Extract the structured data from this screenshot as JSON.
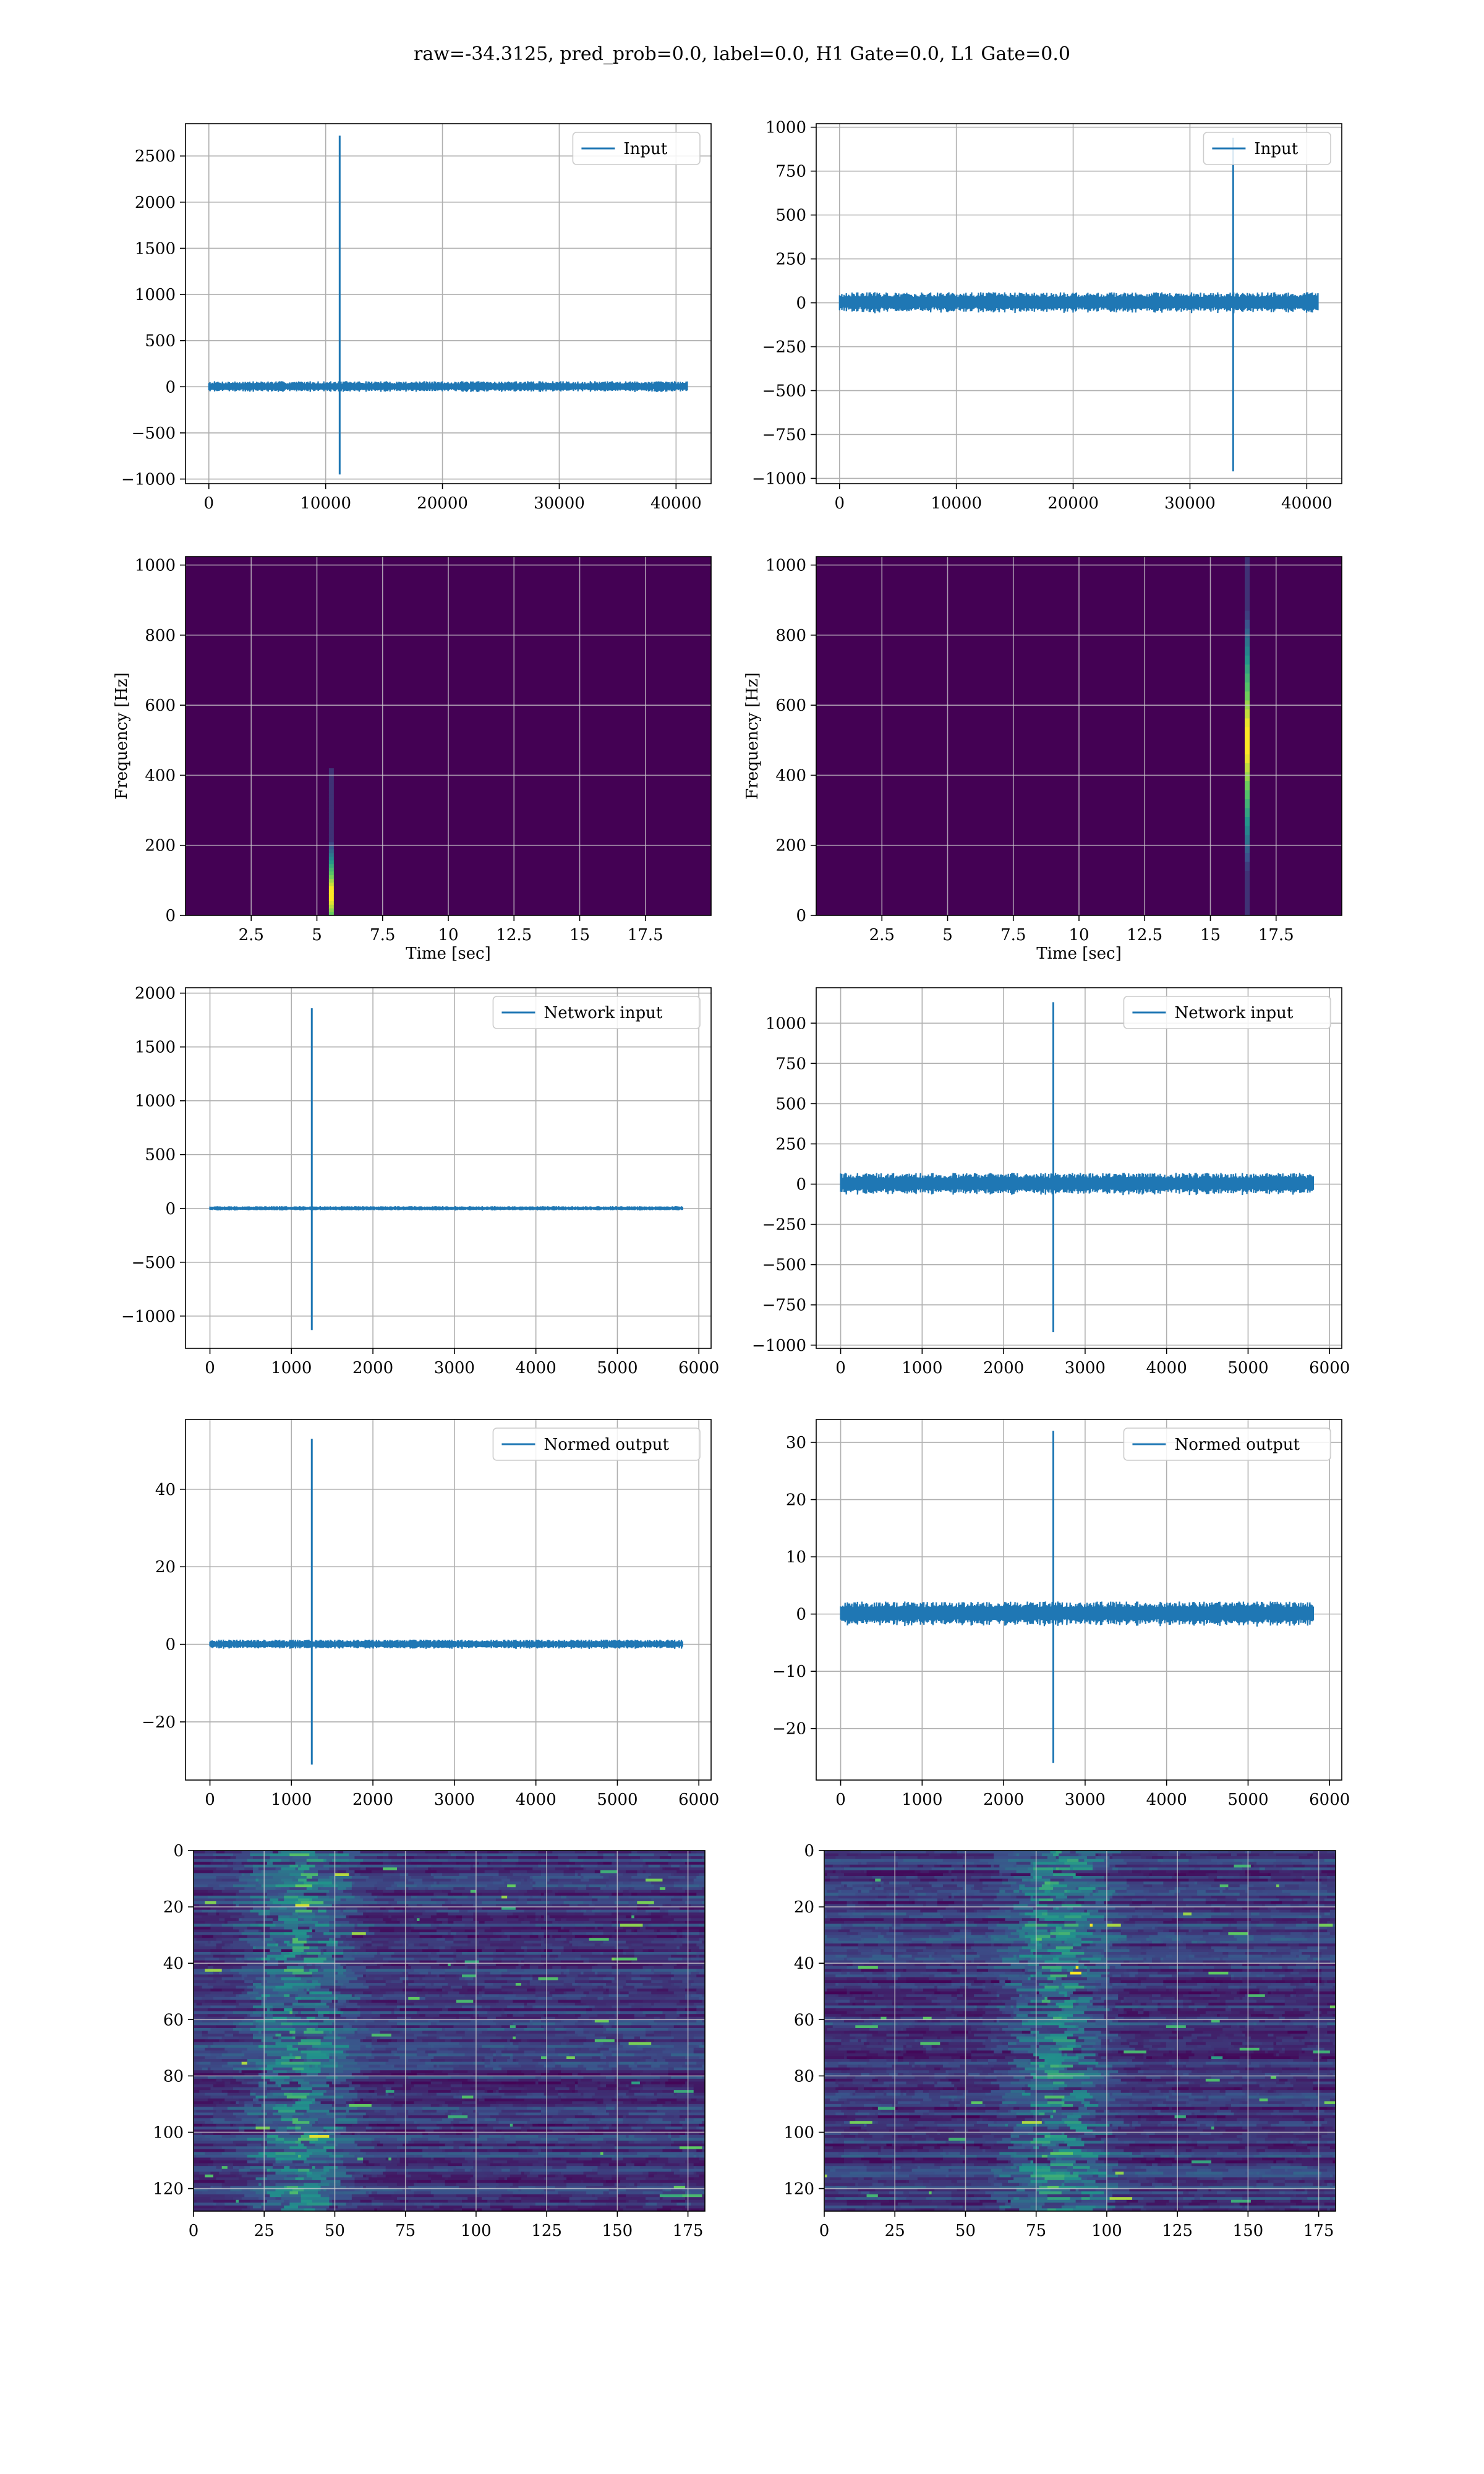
{
  "figure_title": "raw=-34.3125, pred_prob=0.0, label=0.0, H1 Gate=0.0, L1 Gate=0.0",
  "colors": {
    "series": "#1f77b4",
    "heatmap_bg": "#440154",
    "grid": "#b0b0b0"
  },
  "chart_data": [
    {
      "id": "input-h1",
      "type": "line",
      "legend": "Input",
      "legend_loc": "upper right",
      "xlim": [
        -2000,
        43000
      ],
      "ylim": [
        -1050,
        2850
      ],
      "xticks": [
        0,
        10000,
        20000,
        30000,
        40000
      ],
      "yticks": [
        -1000,
        -500,
        0,
        500,
        1000,
        1500,
        2000,
        2500
      ],
      "x_range": [
        0,
        40960
      ],
      "noise_amplitude": 60,
      "spikes": [
        {
          "x": 11200,
          "min": -950,
          "max": 2720
        }
      ],
      "grid": true
    },
    {
      "id": "input-l1",
      "type": "line",
      "legend": "Input",
      "legend_loc": "upper right",
      "xlim": [
        -2000,
        43000
      ],
      "ylim": [
        -1030,
        1020
      ],
      "xticks": [
        0,
        10000,
        20000,
        30000,
        40000
      ],
      "yticks": [
        -1000,
        -750,
        -500,
        -250,
        0,
        250,
        500,
        750,
        1000
      ],
      "x_range": [
        0,
        40960
      ],
      "noise_amplitude": 60,
      "spikes": [
        {
          "x": 33700,
          "min": -960,
          "max": 940
        }
      ],
      "grid": true
    },
    {
      "id": "spec-h1",
      "type": "heatmap",
      "xlabel": "Time [sec]",
      "ylabel": "Frequency [Hz]",
      "xlim": [
        0,
        20
      ],
      "ylim": [
        0,
        1024
      ],
      "xticks": [
        2.5,
        5.0,
        7.5,
        10.0,
        12.5,
        15.0,
        17.5
      ],
      "yticks": [
        0,
        200,
        400,
        600,
        800,
        1000
      ],
      "hotspots": [
        {
          "t": 5.55,
          "f_min": 0,
          "f_max": 420,
          "peak_f": 60
        }
      ],
      "grid": true
    },
    {
      "id": "spec-l1",
      "type": "heatmap",
      "xlabel": "Time [sec]",
      "ylabel": "Frequency [Hz]",
      "xlim": [
        0,
        20
      ],
      "ylim": [
        0,
        1024
      ],
      "xticks": [
        2.5,
        5.0,
        7.5,
        10.0,
        12.5,
        15.0,
        17.5
      ],
      "yticks": [
        0,
        200,
        400,
        600,
        800,
        1000
      ],
      "hotspots": [
        {
          "t": 16.4,
          "f_min": 0,
          "f_max": 1024,
          "peak_f": 500
        }
      ],
      "grid": true
    },
    {
      "id": "net-h1",
      "type": "line",
      "legend": "Network input",
      "legend_loc": "upper right",
      "xlim": [
        -300,
        6150
      ],
      "ylim": [
        -1300,
        2050
      ],
      "xticks": [
        0,
        1000,
        2000,
        3000,
        4000,
        5000,
        6000
      ],
      "yticks": [
        -1000,
        -500,
        0,
        500,
        1000,
        1500,
        2000
      ],
      "x_range": [
        0,
        5800
      ],
      "noise_amplitude": 20,
      "spikes": [
        {
          "x": 1250,
          "min": -1130,
          "max": 1860
        }
      ],
      "grid": true
    },
    {
      "id": "net-l1",
      "type": "line",
      "legend": "Network input",
      "legend_loc": "upper right",
      "xlim": [
        -300,
        6150
      ],
      "ylim": [
        -1020,
        1220
      ],
      "xticks": [
        0,
        1000,
        2000,
        3000,
        4000,
        5000,
        6000
      ],
      "yticks": [
        -1000,
        -750,
        -500,
        -250,
        0,
        250,
        500,
        750,
        1000
      ],
      "x_range": [
        0,
        5800
      ],
      "noise_amplitude": 70,
      "spikes": [
        {
          "x": 2610,
          "min": -920,
          "max": 1130
        }
      ],
      "grid": true
    },
    {
      "id": "norm-h1",
      "type": "line",
      "legend": "Normed output",
      "legend_loc": "upper right",
      "xlim": [
        -300,
        6150
      ],
      "ylim": [
        -35,
        58
      ],
      "xticks": [
        0,
        1000,
        2000,
        3000,
        4000,
        5000,
        6000
      ],
      "yticks": [
        -20,
        0,
        20,
        40
      ],
      "x_range": [
        0,
        5800
      ],
      "noise_amplitude": 1.2,
      "spikes": [
        {
          "x": 1250,
          "min": -31,
          "max": 53
        }
      ],
      "grid": true
    },
    {
      "id": "norm-l1",
      "type": "line",
      "legend": "Normed output",
      "legend_loc": "upper right",
      "xlim": [
        -300,
        6150
      ],
      "ylim": [
        -29,
        34
      ],
      "xticks": [
        0,
        1000,
        2000,
        3000,
        4000,
        5000,
        6000
      ],
      "yticks": [
        -20,
        -10,
        0,
        10,
        20,
        30
      ],
      "x_range": [
        0,
        5800
      ],
      "noise_amplitude": 2.2,
      "spikes": [
        {
          "x": 2610,
          "min": -26,
          "max": 32
        }
      ],
      "grid": true
    },
    {
      "id": "emb-h1",
      "type": "heatmap",
      "xlim": [
        0,
        181
      ],
      "ylim": [
        128,
        0
      ],
      "xticks": [
        0,
        25,
        50,
        75,
        100,
        125,
        150,
        175
      ],
      "yticks": [
        0,
        20,
        40,
        60,
        80,
        100,
        120
      ],
      "activity_center_col": 35,
      "grid": true
    },
    {
      "id": "emb-l1",
      "type": "heatmap",
      "xlim": [
        0,
        181
      ],
      "ylim": [
        128,
        0
      ],
      "xticks": [
        0,
        25,
        50,
        75,
        100,
        125,
        150,
        175
      ],
      "yticks": [
        0,
        20,
        40,
        60,
        80,
        100,
        120
      ],
      "activity_center_col": 80,
      "grid": true
    }
  ]
}
